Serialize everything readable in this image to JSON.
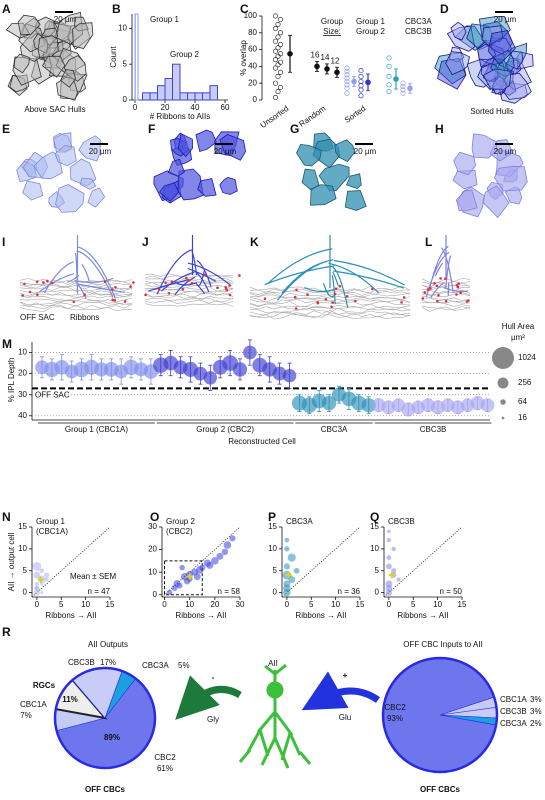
{
  "panel_letters": [
    "A",
    "B",
    "C",
    "D",
    "E",
    "F",
    "G",
    "H",
    "I",
    "J",
    "K",
    "L",
    "M",
    "N",
    "O",
    "P",
    "Q",
    "R"
  ],
  "captions": {
    "a": "Above SAC Hulls",
    "d": "Sorted Hulls",
    "scale": "20 µm",
    "off_sac": "OFF SAC",
    "ribbons": "Ribbons"
  },
  "diagram": {
    "cell": "AII",
    "minus": "-",
    "plus": "+",
    "gly": "Gly",
    "glu": "Glu"
  },
  "chart_data": [
    {
      "type": "histogram",
      "xlabel": "# Ribbons to AIIs",
      "ylabel": "Count",
      "xlim": [
        -2,
        62
      ],
      "xticks": [
        0,
        20,
        40,
        60
      ],
      "ylim": [
        0,
        12
      ],
      "yticks": [
        0,
        5,
        10
      ],
      "series": [
        {
          "name": "Group 1",
          "color": "#8f9ff0",
          "bins": [
            0,
            2
          ],
          "values": [
            12
          ]
        },
        {
          "name": "Group 2",
          "color": "#3c44d6",
          "bins": [
            5,
            10,
            15,
            20,
            25,
            30,
            35,
            40,
            45,
            50,
            55
          ],
          "values": [
            1,
            1,
            2,
            3,
            5,
            1,
            1,
            1,
            1,
            2
          ]
        }
      ]
    },
    {
      "type": "dot",
      "ylabel": "% overlap",
      "ylim": [
        0,
        100
      ],
      "yticks": [
        0,
        20,
        40,
        60,
        80,
        100
      ],
      "categories": [
        "Unsorted",
        "Random",
        "Sorted"
      ],
      "size_title": [
        "Group",
        "Size:"
      ],
      "unsorted": {
        "color": "#111111",
        "points": [
          3,
          10,
          15,
          20,
          28,
          33,
          38,
          42,
          45,
          48,
          52,
          55,
          58,
          62,
          66,
          70,
          75,
          80,
          85,
          90,
          96,
          100
        ],
        "mean": 55,
        "error": 22
      },
      "random": {
        "color": "#111111",
        "sizes": [
          16,
          14,
          12
        ],
        "means": [
          40,
          37,
          33
        ],
        "errors": [
          6,
          6,
          6
        ]
      },
      "series": [
        {
          "name": "Group 1",
          "color": "#8f9ff0",
          "points": [
            8,
            14,
            18,
            22,
            26,
            30,
            34,
            38
          ],
          "mean": 22,
          "error": 6
        },
        {
          "name": "Group 2",
          "color": "#3434c8",
          "points": [
            5,
            12,
            17,
            22,
            28,
            35
          ],
          "mean": 21,
          "error": 10
        },
        {
          "name": "CBC3A",
          "color": "#2b9ccc",
          "points": [
            10,
            18,
            28,
            40,
            50
          ],
          "mean": 25,
          "error": 12
        },
        {
          "name": "CBC3B",
          "color": "#9c9cf0",
          "points": [
            8,
            12,
            16,
            20
          ],
          "mean": 14,
          "error": 6
        }
      ]
    },
    {
      "type": "bubble",
      "ylabel": "% IPL Depth",
      "xlabel": "Reconstructed Cell",
      "ylim": [
        5,
        42
      ],
      "inverted": true,
      "yticks": [
        10,
        20,
        30,
        40
      ],
      "grid": true,
      "reference": {
        "value": 27,
        "label": "OFF SAC"
      },
      "size_title": "Hull Area",
      "size_unit": "µm²",
      "size_legend": [
        1024,
        256,
        64,
        16
      ],
      "series": [
        {
          "name": "Group 1 (CBC1A)",
          "color": "#7e8cec",
          "values": [
            17,
            18,
            17,
            19,
            18,
            17,
            18,
            18,
            19,
            17,
            18,
            19
          ],
          "errors": [
            5,
            5,
            6,
            5,
            5,
            6,
            5,
            5,
            6,
            5,
            5,
            6
          ],
          "sizes": [
            400,
            500,
            450,
            400,
            520,
            480,
            430,
            460,
            400,
            500,
            420,
            450
          ]
        },
        {
          "name": "Group 2 (CBC2)",
          "color": "#3c3cd0",
          "values": [
            16,
            15,
            17,
            18,
            20,
            22,
            17,
            15,
            18,
            10,
            16,
            18,
            20,
            21
          ],
          "errors": [
            5,
            6,
            5,
            6,
            5,
            6,
            5,
            6,
            5,
            6,
            5,
            6,
            5,
            6
          ],
          "sizes": [
            500,
            450,
            420,
            480,
            400,
            380,
            460,
            520,
            430,
            400,
            470,
            440,
            410,
            390
          ]
        },
        {
          "name": "CBC3A",
          "color": "#2b8fb8",
          "values": [
            34,
            35,
            33,
            34,
            30,
            32,
            34,
            35
          ],
          "errors": [
            4,
            4,
            5,
            4,
            4,
            5,
            4,
            4
          ],
          "sizes": [
            480,
            500,
            460,
            440,
            420,
            450,
            470,
            430
          ]
        },
        {
          "name": "CBC3B",
          "color": "#a5a5f2",
          "values": [
            35,
            36,
            35,
            37,
            36,
            35,
            36,
            35,
            36,
            35,
            34,
            35
          ],
          "errors": [
            3,
            3,
            3,
            3,
            3,
            3,
            3,
            3,
            3,
            3,
            3,
            3
          ],
          "sizes": [
            420,
            400,
            380,
            410,
            390,
            400,
            420,
            380,
            400,
            390,
            410,
            400
          ]
        }
      ]
    },
    {
      "type": "scatter",
      "title": "Group 1",
      "subtitle": "(CBC1A)",
      "ylabel": "AII → output cell",
      "xlabel": "Ribbons → AII",
      "annotation": "n = 47",
      "mean_label": "Mean ± SEM",
      "xlim": [
        -1,
        15
      ],
      "xticks": [
        0,
        5,
        10,
        15
      ],
      "ylim": [
        -1,
        15
      ],
      "yticks": [
        0,
        5,
        10,
        15
      ],
      "series": [
        {
          "color": "#a8b4f0",
          "x": [
            0,
            0,
            0,
            1,
            0,
            1,
            2,
            0,
            1,
            0,
            2,
            1
          ],
          "y": [
            0,
            1,
            2,
            3,
            4,
            5,
            3,
            6,
            2,
            1,
            4,
            0
          ],
          "sizes": [
            200,
            150,
            100,
            300,
            256,
            120,
            80,
            400,
            60,
            90,
            150,
            50
          ]
        }
      ],
      "mean": {
        "x": 0.8,
        "y": 3
      }
    },
    {
      "type": "scatter",
      "title": "Group 2",
      "subtitle": "(CBC2)",
      "xlabel": "Ribbons → AII",
      "annotation": "n = 58",
      "xlim": [
        -1,
        30
      ],
      "xticks": [
        0,
        10,
        20,
        30
      ],
      "ylim": [
        -1,
        30
      ],
      "yticks": [
        0,
        10,
        20,
        30
      ],
      "zoom_box": {
        "x": [
          0,
          15
        ],
        "y": [
          0,
          15
        ]
      },
      "series": [
        {
          "color": "#3b44d8",
          "x": [
            2,
            4,
            5,
            6,
            8,
            9,
            10,
            12,
            14,
            15,
            17,
            18,
            20,
            22,
            24,
            25,
            27,
            10,
            7,
            13
          ],
          "y": [
            1,
            3,
            5,
            4,
            8,
            6,
            9,
            10,
            11,
            12,
            14,
            13,
            15,
            17,
            19,
            22,
            25,
            7,
            12,
            8
          ],
          "sizes": [
            150,
            200,
            256,
            180,
            300,
            220,
            260,
            240,
            300,
            200,
            280,
            260,
            300,
            250,
            220,
            300,
            200,
            180,
            160,
            240
          ]
        }
      ],
      "mean": {
        "x": 10,
        "y": 8
      }
    },
    {
      "type": "scatter",
      "title": "CBC3A",
      "xlabel": "Ribbons → AII",
      "annotation": "n = 36",
      "xlim": [
        -1,
        15
      ],
      "xticks": [
        0,
        5,
        10,
        15
      ],
      "ylim": [
        -1,
        15
      ],
      "yticks": [
        0,
        5,
        10,
        15
      ],
      "series": [
        {
          "color": "#2a8fb8",
          "x": [
            0,
            0,
            0,
            0,
            1,
            0,
            1,
            0,
            0,
            2
          ],
          "y": [
            0,
            2,
            4,
            6,
            8,
            10,
            3,
            12,
            1,
            5
          ],
          "sizes": [
            300,
            256,
            400,
            200,
            350,
            150,
            250,
            120,
            300,
            180
          ]
        }
      ],
      "mean": {
        "x": 0.4,
        "y": 4
      }
    },
    {
      "type": "scatter",
      "title": "CBC3B",
      "xlabel": "Ribbons → AII",
      "annotation": "n = 50",
      "xlim": [
        -1,
        15
      ],
      "xticks": [
        0,
        5,
        10,
        15
      ],
      "ylim": [
        -1,
        15
      ],
      "yticks": [
        0,
        5,
        10,
        15
      ],
      "series": [
        {
          "color": "#7f86ec",
          "x": [
            0,
            0,
            1,
            0,
            0,
            1,
            2,
            0,
            0,
            1,
            0
          ],
          "y": [
            0,
            2,
            4,
            6,
            8,
            10,
            3,
            12,
            14,
            5,
            1
          ],
          "sizes": [
            200,
            256,
            150,
            180,
            120,
            100,
            80,
            90,
            60,
            140,
            220
          ]
        }
      ],
      "mean": {
        "x": 0.6,
        "y": 4
      }
    },
    {
      "type": "pie",
      "title": "AII Outputs",
      "categories": [
        "CBC3A",
        "CBC2",
        "CBC1A",
        "RGCs",
        "CBC3B"
      ],
      "values": [
        5,
        61,
        7,
        11,
        17
      ],
      "value_labels": [
        "5%",
        "61%",
        "7%",
        "11%",
        "17%"
      ],
      "colors": [
        "#1aa0e0",
        "#6e76ee",
        "#c4ccf6",
        "#eeeeee",
        "#c8ccf6"
      ],
      "group": {
        "label": "OFF CBCs",
        "value": 89,
        "value_label": "89%"
      }
    },
    {
      "type": "pie",
      "title": "OFF CBC Inputs to AII",
      "categories": [
        "CBC1A",
        "CBC3B",
        "CBC3A",
        "CBC2"
      ],
      "values": [
        3,
        3,
        2,
        93
      ],
      "value_labels": [
        "3%",
        "3%",
        "2%",
        "93%"
      ],
      "colors": [
        "#c4ccf6",
        "#c8ccf6",
        "#1aa0e0",
        "#6e76ee"
      ],
      "footer": "OFF CBCs"
    }
  ]
}
